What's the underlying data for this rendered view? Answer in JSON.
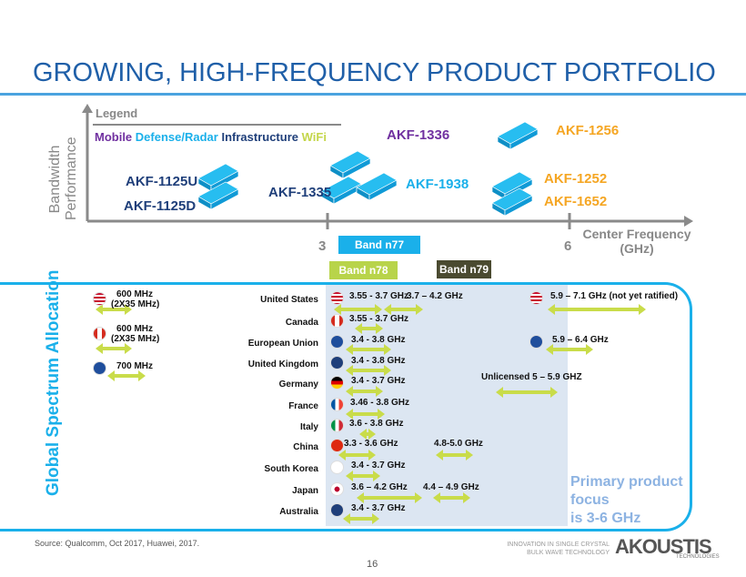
{
  "title": "GROWING, HIGH-FREQUENCY PRODUCT PORTFOLIO",
  "legend": {
    "label": "Legend",
    "mobile": "Mobile",
    "defense": "Defense/Radar",
    "infrastructure": "Infrastructure",
    "wifi": "WiFi"
  },
  "axes": {
    "y_label_1": "Bandwidth",
    "y_label_2": "Performance",
    "x_label_1": "Center Frequency",
    "x_label_2": "(GHz)",
    "tick_3": "3",
    "tick_6": "6"
  },
  "products": [
    "AKF-1125U",
    "AKF-1125D",
    "AKF-1335",
    "AKF-1336",
    "AKF-1938",
    "AKF-1256",
    "AKF-1252",
    "AKF-1652"
  ],
  "bands": {
    "n77": "Band n77",
    "n78": "Band n78",
    "n79": "Band n79"
  },
  "side_label": "Global Spectrum Allocation",
  "low_band": [
    {
      "l1": "600 MHz",
      "l2": "(2X35 MHz)",
      "flag": "us"
    },
    {
      "l1": "600 MHz",
      "l2": "(2X35 MHz)",
      "flag": "ca"
    },
    {
      "l1": "700 MHz",
      "l2": "",
      "flag": "eu"
    }
  ],
  "countries": [
    {
      "name": "United States",
      "flag": "us",
      "f1": "3.55 - 3.7 GHz",
      "f2": "3.7 – 4.2 GHz"
    },
    {
      "name": "Canada",
      "flag": "ca",
      "f1": "3.55 - 3.7 GHz",
      "f2": ""
    },
    {
      "name": "European Union",
      "flag": "eu",
      "f1": "3.4 - 3.8 GHz",
      "f2": ""
    },
    {
      "name": "United Kingdom",
      "flag": "uk",
      "f1": "3.4 - 3.8 GHz",
      "f2": ""
    },
    {
      "name": "Germany",
      "flag": "de",
      "f1": "3.4 - 3.7 GHz",
      "f2": ""
    },
    {
      "name": "France",
      "flag": "fr",
      "f1": "3.46 - 3.8 GHz",
      "f2": ""
    },
    {
      "name": "Italy",
      "flag": "it",
      "f1": "3.6 - 3.8 GHz",
      "f2": ""
    },
    {
      "name": "China",
      "flag": "cn",
      "f1": "3.3 - 3.6 GHz",
      "f2": "4.8-5.0 GHz"
    },
    {
      "name": "South Korea",
      "flag": "kr",
      "f1": "3.4 - 3.7 GHz",
      "f2": ""
    },
    {
      "name": "Japan",
      "flag": "jp",
      "f1": "3.6 – 4.2 GHz",
      "f2": "4.4 – 4.9 GHz"
    },
    {
      "name": "Australia",
      "flag": "au",
      "f1": "3.4 - 3.7 GHz",
      "f2": ""
    }
  ],
  "high": {
    "us": "5.9 – 7.1 GHz (not yet ratified)",
    "eu": "5.9 – 6.4 GHz",
    "unlicensed": "Unlicensed 5 – 5.9 GHZ"
  },
  "focus": {
    "l1": "Primary product",
    "l2": "focus",
    "l3": "is 3-6 GHz"
  },
  "footer": {
    "source": "Source: Qualcomm, Oct 2017, Huawei, 2017.",
    "tag1": "INNOVATION IN SINGLE CRYSTAL",
    "tag2": "BULK WAVE TECHNOLOGY",
    "logo": "AKOUSTIS",
    "logo_sub": "TECHNOLOGIES",
    "page": "16"
  },
  "colors": {
    "accent": "#1ab0ea",
    "arrow": "#c9dc4a",
    "shade": "#dce6f2"
  }
}
